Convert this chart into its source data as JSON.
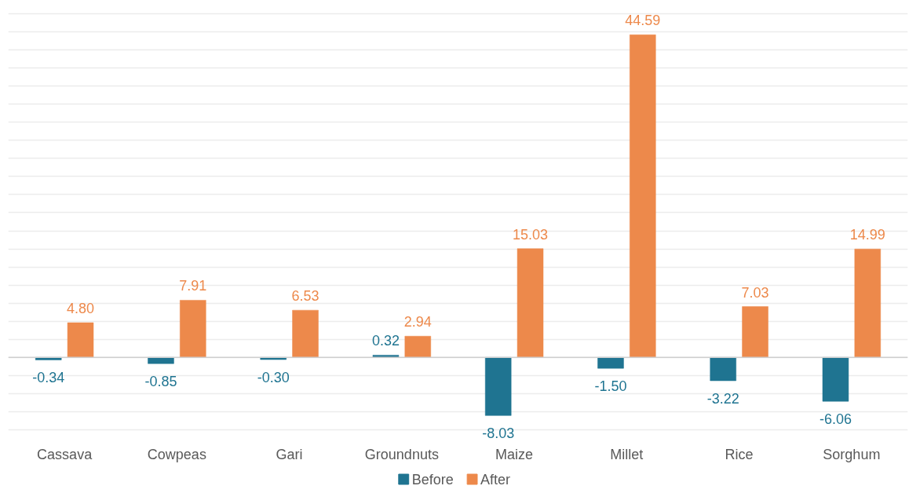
{
  "chart_data": {
    "type": "bar",
    "categories": [
      "Cassava",
      "Cowpeas",
      "Gari",
      "Groundnuts",
      "Maize",
      "Millet",
      "Rice",
      "Sorghum"
    ],
    "series": [
      {
        "name": "Before",
        "color": "#1f7491",
        "values": [
          -0.34,
          -0.85,
          -0.3,
          0.32,
          -8.03,
          -1.5,
          -3.22,
          -6.06
        ],
        "value_labels": [
          "-0.34",
          "-0.85",
          "-0.30",
          "0.32",
          "-8.03",
          "-1.50",
          "-3.22",
          "-6.06"
        ]
      },
      {
        "name": "After",
        "color": "#ed894b",
        "values": [
          4.8,
          7.91,
          6.53,
          2.94,
          15.03,
          44.59,
          7.03,
          14.99
        ],
        "value_labels": [
          "4.80",
          "7.91",
          "6.53",
          "2.94",
          "15.03",
          "44.59",
          "7.03",
          "14.99"
        ]
      }
    ],
    "yticks": [
      {
        "value": -10,
        "label": null
      },
      {
        "value": -7.5,
        "label": null
      },
      {
        "value": -5,
        "label": null
      },
      {
        "value": -2.5,
        "label": null
      },
      {
        "value": 0,
        "label": null
      },
      {
        "value": 2.5,
        "label": null
      },
      {
        "value": 5,
        "label": null
      },
      {
        "value": 7.5,
        "label": null
      },
      {
        "value": 10,
        "label": null
      },
      {
        "value": 12.5,
        "label": null
      },
      {
        "value": 15,
        "label": null
      },
      {
        "value": 17.5,
        "label": null
      },
      {
        "value": 20,
        "label": null
      },
      {
        "value": 22.5,
        "label": null
      },
      {
        "value": 25,
        "label": null
      },
      {
        "value": 27.5,
        "label": null
      },
      {
        "value": 30,
        "label": null
      },
      {
        "value": 32.5,
        "label": null
      },
      {
        "value": 35,
        "label": null
      },
      {
        "value": 37.5,
        "label": null
      },
      {
        "value": 40,
        "label": null
      },
      {
        "value": 42.5,
        "label": null
      },
      {
        "value": 45,
        "label": null
      },
      {
        "value": 47.5,
        "label": null
      }
    ],
    "tick_labels": "x",
    "grid": "y",
    "legend": "bottom"
  }
}
